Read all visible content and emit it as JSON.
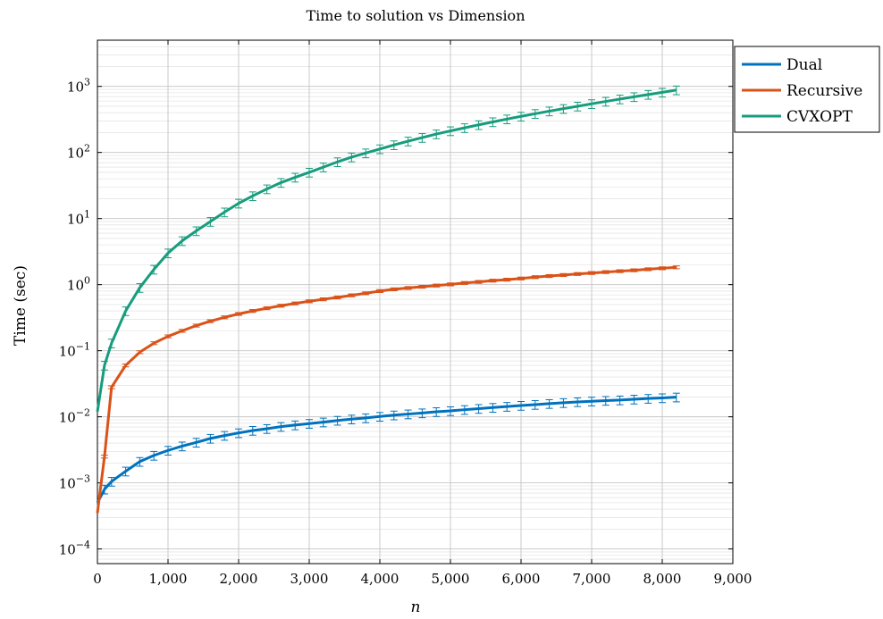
{
  "chart_data": {
    "type": "line",
    "title": "Time to solution vs Dimension",
    "xlabel": "n",
    "ylabel": "Time (sec)",
    "xlim": [
      0,
      9000
    ],
    "ylim": [
      6e-05,
      5000
    ],
    "yscale": "log",
    "grid": true,
    "legend_position": "outside-top-right",
    "x_ticks": [
      0,
      1000,
      2000,
      3000,
      4000,
      5000,
      6000,
      7000,
      8000,
      9000
    ],
    "x_tick_labels": [
      "0",
      "1,000",
      "2,000",
      "3,000",
      "4,000",
      "5,000",
      "6,000",
      "7,000",
      "8,000",
      "9,000"
    ],
    "y_ticks": [
      0.0001,
      0.001,
      0.01,
      0.1,
      1,
      10,
      100,
      1000
    ],
    "y_tick_labels": [
      {
        "base": "10",
        "exp": "−4"
      },
      {
        "base": "10",
        "exp": "−3"
      },
      {
        "base": "10",
        "exp": "−2"
      },
      {
        "base": "10",
        "exp": "−1"
      },
      {
        "base": "10",
        "exp": "0"
      },
      {
        "base": "10",
        "exp": "1"
      },
      {
        "base": "10",
        "exp": "2"
      },
      {
        "base": "10",
        "exp": "3"
      }
    ],
    "series": [
      {
        "name": "Dual",
        "color": "#0072bd",
        "x": [
          0,
          100,
          200,
          400,
          600,
          800,
          1000,
          1200,
          1400,
          1600,
          1800,
          2000,
          2200,
          2400,
          2600,
          2800,
          3000,
          3200,
          3400,
          3600,
          3800,
          4000,
          4200,
          4400,
          4600,
          4800,
          5000,
          5200,
          5400,
          5600,
          5800,
          6000,
          6200,
          6400,
          6600,
          6800,
          7000,
          7200,
          7400,
          7600,
          7800,
          8000,
          8200
        ],
        "values": [
          0.0005,
          0.0008,
          0.00105,
          0.0015,
          0.0021,
          0.0026,
          0.0031,
          0.0036,
          0.0041,
          0.0047,
          0.0052,
          0.0057,
          0.0062,
          0.0066,
          0.0071,
          0.0075,
          0.0079,
          0.0083,
          0.0088,
          0.0092,
          0.0096,
          0.0101,
          0.0106,
          0.011,
          0.0114,
          0.0119,
          0.0123,
          0.0128,
          0.0133,
          0.0138,
          0.0143,
          0.0148,
          0.0153,
          0.0158,
          0.0163,
          0.0168,
          0.0172,
          0.0176,
          0.0179,
          0.0184,
          0.0189,
          0.0193,
          0.0198
        ],
        "err_frac": 0.15
      },
      {
        "name": "Recursive",
        "color": "#d95319",
        "x": [
          0,
          100,
          200,
          400,
          600,
          800,
          1000,
          1200,
          1400,
          1600,
          1800,
          2000,
          2200,
          2400,
          2600,
          2800,
          3000,
          3200,
          3400,
          3600,
          3800,
          4000,
          4200,
          4400,
          4600,
          4800,
          5000,
          5200,
          5400,
          5600,
          5800,
          6000,
          6200,
          6400,
          6600,
          6800,
          7000,
          7200,
          7400,
          7600,
          7800,
          8000,
          8200
        ],
        "values": [
          0.00035,
          0.0025,
          0.028,
          0.06,
          0.095,
          0.13,
          0.165,
          0.2,
          0.24,
          0.28,
          0.32,
          0.36,
          0.4,
          0.44,
          0.48,
          0.52,
          0.56,
          0.6,
          0.64,
          0.69,
          0.74,
          0.8,
          0.85,
          0.89,
          0.93,
          0.97,
          1.01,
          1.06,
          1.1,
          1.15,
          1.19,
          1.24,
          1.3,
          1.35,
          1.4,
          1.45,
          1.5,
          1.55,
          1.6,
          1.65,
          1.71,
          1.77,
          1.83
        ],
        "err_frac": 0.05
      },
      {
        "name": "CVXOPT",
        "color": "#179c7d",
        "x": [
          0,
          100,
          200,
          400,
          600,
          800,
          1000,
          1200,
          1400,
          1600,
          1800,
          2000,
          2200,
          2400,
          2600,
          2800,
          3000,
          3200,
          3400,
          3600,
          3800,
          4000,
          4200,
          4400,
          4600,
          4800,
          5000,
          5200,
          5400,
          5600,
          5800,
          6000,
          6200,
          6400,
          6600,
          6800,
          7000,
          7200,
          7400,
          7600,
          7800,
          8000,
          8200
        ],
        "values": [
          0.012,
          0.06,
          0.13,
          0.4,
          0.9,
          1.7,
          3.0,
          4.6,
          6.5,
          9.0,
          12.5,
          17,
          22,
          28,
          35,
          42,
          50,
          60,
          72,
          85,
          98,
          113,
          130,
          148,
          168,
          190,
          212,
          236,
          262,
          290,
          320,
          352,
          386,
          422,
          460,
          500,
          545,
          592,
          642,
          695,
          752,
          812,
          880
        ],
        "err_frac": 0.15
      }
    ]
  }
}
